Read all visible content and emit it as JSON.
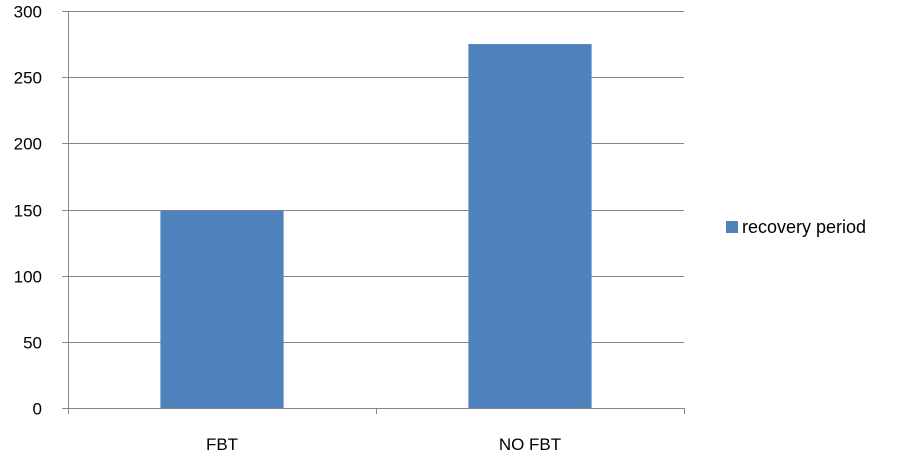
{
  "chart_data": {
    "type": "bar",
    "title": "",
    "xlabel": "",
    "ylabel": "",
    "categories": [
      "FBT",
      "NO FBT"
    ],
    "series": [
      {
        "name": "recovery period",
        "values": [
          149,
          275
        ],
        "color": "#4f81bd"
      }
    ],
    "ylim": [
      0,
      300
    ],
    "yticks": [
      "0",
      "50",
      "100",
      "150",
      "200",
      "250",
      "300"
    ],
    "grid": true,
    "legend": "right"
  }
}
